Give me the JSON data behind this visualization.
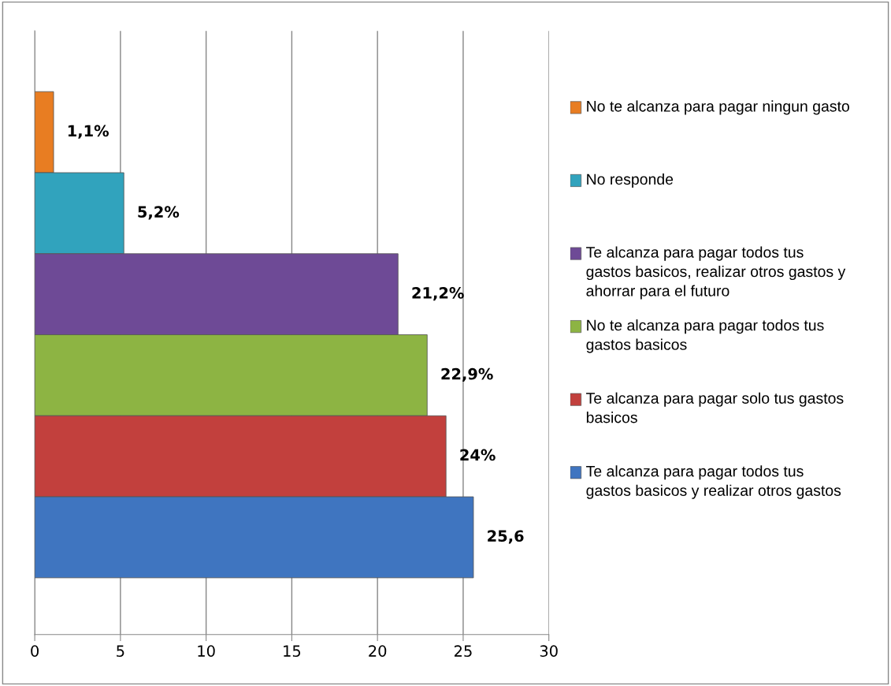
{
  "chart_data": {
    "type": "bar",
    "orientation": "horizontal",
    "categories": [
      null,
      null,
      null,
      null,
      null,
      null
    ],
    "series": [
      {
        "name": "No te alcanza para pagar ningun gasto",
        "color": "#e87d22",
        "values": [
          1.1,
          null,
          null,
          null,
          null,
          null
        ],
        "value_labels": [
          "1,1%",
          null,
          null,
          null,
          null,
          null
        ]
      },
      {
        "name": "No responde",
        "color": "#31a3bd",
        "values": [
          null,
          5.2,
          null,
          null,
          null,
          null
        ],
        "value_labels": [
          null,
          "5,2%",
          null,
          null,
          null,
          null
        ]
      },
      {
        "name": "Te alcanza para pagar todos tus gastos basicos, realizar otros gastos y ahorrar para el futuro",
        "color": "#6e4a96",
        "values": [
          null,
          null,
          21.2,
          null,
          null,
          null
        ],
        "value_labels": [
          null,
          null,
          "21,2%",
          null,
          null,
          null
        ]
      },
      {
        "name": "No te alcanza para pagar todos tus gastos basicos",
        "color": "#8db443",
        "values": [
          null,
          null,
          null,
          22.9,
          null,
          null
        ],
        "value_labels": [
          null,
          null,
          null,
          "22,9%",
          null,
          null
        ]
      },
      {
        "name": "Te alcanza para pagar solo tus gastos basicos",
        "color": "#c2403d",
        "values": [
          null,
          null,
          null,
          null,
          24,
          null
        ],
        "value_labels": [
          null,
          null,
          null,
          null,
          "24%",
          null
        ]
      },
      {
        "name": "Te alcanza para pagar todos tus gastos basicos y realizar otros gastos",
        "color": "#3f75c0",
        "values": [
          null,
          null,
          null,
          null,
          null,
          25.6
        ],
        "value_labels": [
          null,
          null,
          null,
          null,
          null,
          "25,6"
        ]
      }
    ],
    "xlim": [
      0,
      30
    ],
    "xticks": [
      0,
      5,
      10,
      15,
      20,
      25,
      30
    ],
    "grid": "x",
    "legend": "right"
  }
}
